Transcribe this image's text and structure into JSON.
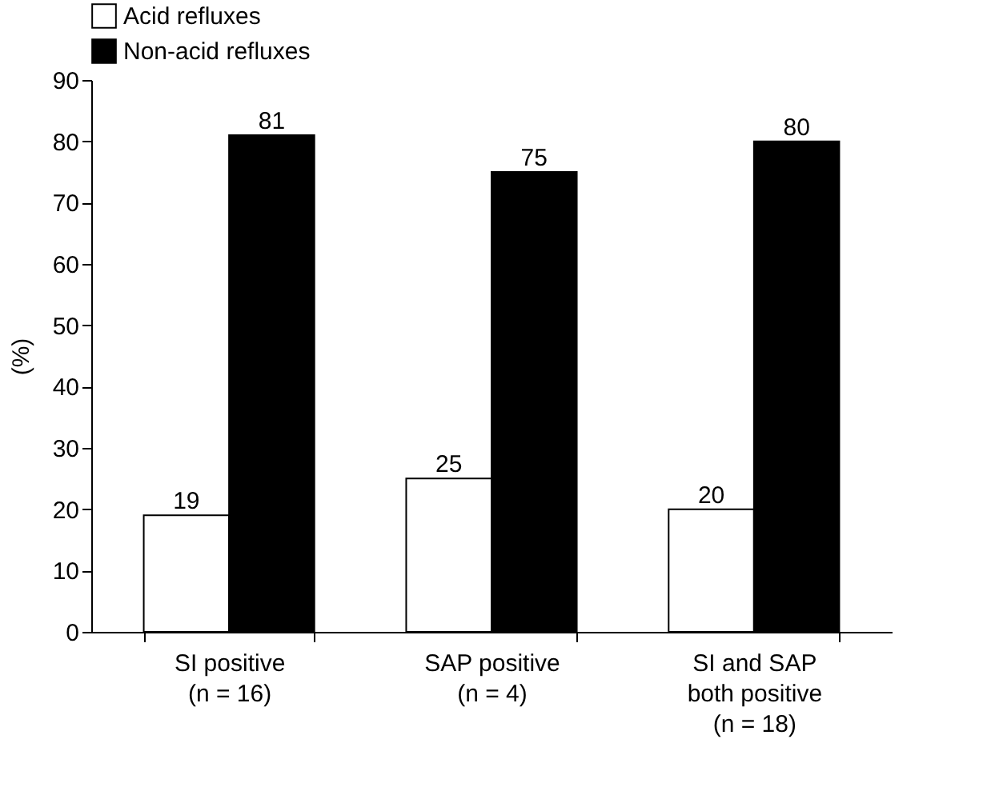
{
  "chart_data": {
    "type": "bar",
    "ylabel": "(%)",
    "categories": [
      "SI positive\n(n = 16)",
      "SAP positive\n(n = 4)",
      "SI and SAP\nboth positive\n(n = 18)"
    ],
    "series": [
      {
        "name": "Acid refluxes",
        "color": "#ffffff",
        "values": [
          19,
          25,
          20
        ]
      },
      {
        "name": "Non-acid refluxes",
        "color": "#000000",
        "values": [
          81,
          75,
          80
        ]
      }
    ],
    "ylim": [
      0,
      90
    ],
    "yticks": [
      0,
      10,
      20,
      30,
      40,
      50,
      60,
      70,
      80,
      90
    ],
    "data_labels": true,
    "legend": "top",
    "grid": false
  }
}
